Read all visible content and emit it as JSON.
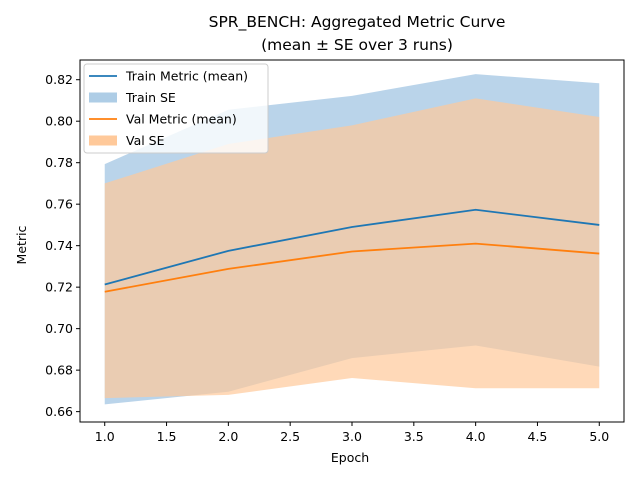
{
  "chart_data": {
    "type": "line",
    "title": "SPR_BENCH: Aggregated Metric Curve",
    "subtitle": "(mean ± SE over 3 runs)",
    "xlabel": "Epoch",
    "ylabel": "Metric",
    "xlim": [
      0.8,
      5.2
    ],
    "ylim": [
      0.655,
      0.8295
    ],
    "xticks": [
      1.0,
      1.5,
      2.0,
      2.5,
      3.0,
      3.5,
      4.0,
      4.5,
      5.0
    ],
    "yticks": [
      0.66,
      0.68,
      0.7,
      0.72,
      0.74,
      0.76,
      0.78,
      0.8,
      0.82
    ],
    "grid": false,
    "legend_position": "upper-left",
    "x": [
      1,
      2,
      3,
      4,
      5
    ],
    "series": [
      {
        "name": "Train Metric (mean)",
        "band_name": "Train SE",
        "color": "#1f77b4",
        "band_color": "#aecde6",
        "mean": [
          0.7213,
          0.7375,
          0.749,
          0.7573,
          0.75
        ],
        "upper": [
          0.7793,
          0.8055,
          0.8122,
          0.8227,
          0.8183
        ],
        "lower": [
          0.6635,
          0.6696,
          0.6858,
          0.6919,
          0.6817
        ]
      },
      {
        "name": "Val Metric (mean)",
        "band_name": "Val SE",
        "color": "#ff7f0e",
        "band_color": "#ffc99a",
        "mean": [
          0.7178,
          0.7288,
          0.7372,
          0.741,
          0.7362
        ],
        "upper": [
          0.77,
          0.789,
          0.798,
          0.811,
          0.802
        ],
        "lower": [
          0.6665,
          0.6681,
          0.6762,
          0.6713,
          0.6713
        ]
      }
    ]
  }
}
